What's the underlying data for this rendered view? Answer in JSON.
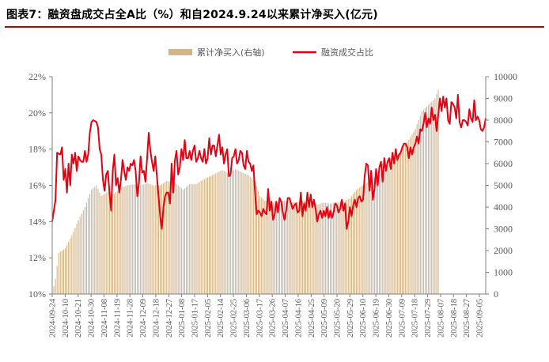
{
  "title": "图表7：融资盘成交占全A比（%）和自2024.9.24以来累计净买入(亿元)",
  "colors": {
    "bars": "#d2b58c",
    "line": "#e60012",
    "title_rule": "#c00000",
    "axis_text": "#595959"
  },
  "chart_data": {
    "type": "bar+line",
    "legend": [
      {
        "name": "累计净买入(右轴)",
        "kind": "bar"
      },
      {
        "name": "融资成交占比",
        "kind": "line"
      }
    ],
    "legend_position": "top-center",
    "grid": false,
    "left_axis": {
      "min": 10,
      "max": 22,
      "step": 2,
      "suffix": "%",
      "ticks": [
        "10%",
        "12%",
        "14%",
        "16%",
        "18%",
        "20%",
        "22%"
      ]
    },
    "right_axis": {
      "min": 0,
      "max": 10000,
      "step": 1000,
      "ticks": [
        "0",
        "1000",
        "2000",
        "3000",
        "4000",
        "5000",
        "6000",
        "7000",
        "8000",
        "9000",
        "10000"
      ]
    },
    "x_tick_labels": [
      "2024-09-24",
      "2024-10-10",
      "2024-10-21",
      "2024-10-30",
      "2024-11-08",
      "2024-11-19",
      "2024-11-28",
      "2024-12-09",
      "2024-12-18",
      "2024-12-27",
      "2025-01-08",
      "2025-01-17",
      "2025-02-05",
      "2025-02-14",
      "2025-02-25",
      "2025-03-06",
      "2025-03-17",
      "2025-03-26",
      "2025-04-07",
      "2025-04-16",
      "2025-04-25",
      "2025-05-09",
      "2025-05-20",
      "2025-05-29",
      "2025-06-10",
      "2025-06-19",
      "2025-06-30",
      "2025-07-09",
      "2025-07-18",
      "2025-07-29",
      "2025-08-07",
      "2025-08-18",
      "2025-08-27",
      "2025-09-05"
    ],
    "bar_anchors": [
      [
        0,
        0
      ],
      [
        2,
        700
      ],
      [
        4,
        1900
      ],
      [
        8,
        2100
      ],
      [
        12,
        2700
      ],
      [
        16,
        3400
      ],
      [
        20,
        4000
      ],
      [
        24,
        4800
      ],
      [
        27,
        5000
      ],
      [
        30,
        4500
      ],
      [
        34,
        4700
      ],
      [
        38,
        4600
      ],
      [
        42,
        4900
      ],
      [
        46,
        5000
      ],
      [
        50,
        5050
      ],
      [
        54,
        5000
      ],
      [
        58,
        5100
      ],
      [
        62,
        5000
      ],
      [
        66,
        5000
      ],
      [
        70,
        5200
      ],
      [
        74,
        5150
      ],
      [
        77,
        5000
      ],
      [
        80,
        4800
      ],
      [
        84,
        5050
      ],
      [
        88,
        5050
      ],
      [
        92,
        5250
      ],
      [
        96,
        5400
      ],
      [
        100,
        5550
      ],
      [
        104,
        5700
      ],
      [
        108,
        5550
      ],
      [
        112,
        5750
      ],
      [
        116,
        5600
      ],
      [
        120,
        5450
      ],
      [
        124,
        5200
      ],
      [
        127,
        4500
      ],
      [
        130,
        4300
      ],
      [
        134,
        4200
      ],
      [
        138,
        4250
      ],
      [
        142,
        4300
      ],
      [
        146,
        4200
      ],
      [
        150,
        4250
      ],
      [
        154,
        4300
      ],
      [
        158,
        4150
      ],
      [
        162,
        4100
      ],
      [
        166,
        4200
      ],
      [
        170,
        4150
      ],
      [
        174,
        4200
      ],
      [
        178,
        4250
      ],
      [
        182,
        4400
      ],
      [
        186,
        4800
      ],
      [
        190,
        5000
      ],
      [
        194,
        5200
      ],
      [
        198,
        5400
      ],
      [
        202,
        5600
      ],
      [
        206,
        6000
      ],
      [
        210,
        6300
      ],
      [
        214,
        6700
      ],
      [
        218,
        7100
      ],
      [
        222,
        7600
      ],
      [
        226,
        8400
      ],
      [
        230,
        8700
      ],
      [
        234,
        9000
      ],
      [
        236,
        9400
      ]
    ],
    "line_anchors": [
      [
        0,
        14.0
      ],
      [
        2,
        15.2
      ],
      [
        3,
        17.8
      ],
      [
        5,
        17.7
      ],
      [
        6,
        18.1
      ],
      [
        7,
        16.3
      ],
      [
        8,
        16.9
      ],
      [
        9,
        15.6
      ],
      [
        10,
        17.2
      ],
      [
        11,
        16.0
      ],
      [
        12,
        17.7
      ],
      [
        13,
        17.2
      ],
      [
        14,
        17.8
      ],
      [
        15,
        16.8
      ],
      [
        16,
        17.6
      ],
      [
        17,
        17.4
      ],
      [
        18,
        17.3
      ],
      [
        19,
        17.3
      ],
      [
        20,
        17.9
      ],
      [
        21,
        17.3
      ],
      [
        22,
        17.7
      ],
      [
        23,
        18.9
      ],
      [
        24,
        19.5
      ],
      [
        25,
        19.6
      ],
      [
        27,
        19.5
      ],
      [
        28,
        19.2
      ],
      [
        29,
        18.0
      ],
      [
        30,
        17.7
      ],
      [
        31,
        16.3
      ],
      [
        32,
        15.7
      ],
      [
        33,
        16.6
      ],
      [
        34,
        16.8
      ],
      [
        35,
        15.6
      ],
      [
        36,
        14.6
      ],
      [
        37,
        16.8
      ],
      [
        38,
        17.7
      ],
      [
        39,
        16.0
      ],
      [
        40,
        16.4
      ],
      [
        41,
        15.6
      ],
      [
        42,
        16.3
      ],
      [
        43,
        17.4
      ],
      [
        44,
        16.8
      ],
      [
        45,
        16.3
      ],
      [
        46,
        17.0
      ],
      [
        47,
        16.8
      ],
      [
        48,
        17.2
      ],
      [
        49,
        17.1
      ],
      [
        50,
        17.4
      ],
      [
        51,
        16.8
      ],
      [
        52,
        15.4
      ],
      [
        53,
        16.1
      ],
      [
        54,
        17.6
      ],
      [
        55,
        16.7
      ],
      [
        56,
        16.8
      ],
      [
        57,
        16.2
      ],
      [
        58,
        17.5
      ],
      [
        59,
        18.9
      ],
      [
        60,
        17.9
      ],
      [
        61,
        17.3
      ],
      [
        62,
        16.8
      ],
      [
        63,
        17.6
      ],
      [
        64,
        16.5
      ],
      [
        65,
        15.4
      ],
      [
        66,
        14.3
      ],
      [
        67,
        13.6
      ],
      [
        68,
        14.8
      ],
      [
        69,
        15.4
      ],
      [
        70,
        15.6
      ],
      [
        71,
        15.6
      ],
      [
        72,
        15.0
      ],
      [
        73,
        17.2
      ],
      [
        74,
        15.6
      ],
      [
        75,
        17.4
      ],
      [
        76,
        17.9
      ],
      [
        77,
        16.6
      ],
      [
        78,
        17.0
      ],
      [
        79,
        18.0
      ],
      [
        80,
        17.4
      ],
      [
        81,
        18.5
      ],
      [
        82,
        17.5
      ],
      [
        83,
        17.5
      ],
      [
        84,
        17.9
      ],
      [
        85,
        17.4
      ],
      [
        86,
        17.9
      ],
      [
        87,
        18.2
      ],
      [
        88,
        17.3
      ],
      [
        89,
        17.5
      ],
      [
        90,
        17.9
      ],
      [
        91,
        17.5
      ],
      [
        92,
        17.3
      ],
      [
        93,
        18.0
      ],
      [
        94,
        17.2
      ],
      [
        95,
        17.5
      ],
      [
        96,
        18.6
      ],
      [
        97,
        17.7
      ],
      [
        98,
        18.2
      ],
      [
        99,
        18.2
      ],
      [
        100,
        17.6
      ],
      [
        101,
        18.2
      ],
      [
        102,
        18.8
      ],
      [
        103,
        17.7
      ],
      [
        104,
        18.1
      ],
      [
        105,
        17.2
      ],
      [
        106,
        17.7
      ],
      [
        107,
        18.0
      ],
      [
        108,
        16.5
      ],
      [
        109,
        16.6
      ],
      [
        110,
        17.5
      ],
      [
        111,
        17.6
      ],
      [
        112,
        18.0
      ],
      [
        113,
        17.2
      ],
      [
        114,
        17.4
      ],
      [
        115,
        17.9
      ],
      [
        116,
        17.8
      ],
      [
        117,
        17.1
      ],
      [
        118,
        16.9
      ],
      [
        119,
        17.9
      ],
      [
        120,
        17.3
      ],
      [
        121,
        17.2
      ],
      [
        122,
        16.8
      ],
      [
        123,
        17.1
      ],
      [
        124,
        15.6
      ],
      [
        125,
        14.4
      ],
      [
        126,
        14.6
      ],
      [
        127,
        14.5
      ],
      [
        128,
        14.3
      ],
      [
        129,
        14.7
      ],
      [
        130,
        14.5
      ],
      [
        131,
        14.4
      ],
      [
        132,
        15.8
      ],
      [
        133,
        14.6
      ],
      [
        134,
        15.1
      ],
      [
        135,
        14.1
      ],
      [
        136,
        14.4
      ],
      [
        137,
        15.1
      ],
      [
        138,
        14.5
      ],
      [
        139,
        15.3
      ],
      [
        140,
        15.1
      ],
      [
        141,
        14.5
      ],
      [
        142,
        14.1
      ],
      [
        143,
        14.6
      ],
      [
        144,
        15.3
      ],
      [
        145,
        15.3
      ],
      [
        146,
        15.0
      ],
      [
        147,
        14.7
      ],
      [
        148,
        14.9
      ],
      [
        149,
        15.0
      ],
      [
        150,
        14.5
      ],
      [
        151,
        14.6
      ],
      [
        152,
        15.6
      ],
      [
        153,
        14.3
      ],
      [
        154,
        15.0
      ],
      [
        155,
        14.6
      ],
      [
        156,
        15.6
      ],
      [
        157,
        14.8
      ],
      [
        158,
        15.5
      ],
      [
        159,
        14.8
      ],
      [
        160,
        15.2
      ],
      [
        161,
        14.7
      ],
      [
        162,
        14.0
      ],
      [
        163,
        14.4
      ],
      [
        164,
        14.6
      ],
      [
        165,
        14.2
      ],
      [
        166,
        14.6
      ],
      [
        167,
        14.3
      ],
      [
        168,
        14.8
      ],
      [
        169,
        14.2
      ],
      [
        170,
        14.6
      ],
      [
        171,
        14.2
      ],
      [
        172,
        14.5
      ],
      [
        173,
        15.0
      ],
      [
        174,
        14.9
      ],
      [
        175,
        14.5
      ],
      [
        176,
        14.7
      ],
      [
        177,
        15.2
      ],
      [
        178,
        14.6
      ],
      [
        179,
        15.0
      ],
      [
        180,
        13.6
      ],
      [
        181,
        14.0
      ],
      [
        182,
        14.8
      ],
      [
        183,
        14.3
      ],
      [
        184,
        14.9
      ],
      [
        185,
        15.2
      ],
      [
        186,
        14.8
      ],
      [
        187,
        15.3
      ],
      [
        188,
        15.4
      ],
      [
        189,
        15.1
      ],
      [
        190,
        15.2
      ],
      [
        191,
        16.5
      ],
      [
        192,
        17.2
      ],
      [
        193,
        17.1
      ],
      [
        194,
        15.7
      ],
      [
        195,
        16.8
      ],
      [
        196,
        15.2
      ],
      [
        197,
        15.8
      ],
      [
        198,
        16.9
      ],
      [
        199,
        16.0
      ],
      [
        200,
        17.0
      ],
      [
        201,
        17.3
      ],
      [
        202,
        16.2
      ],
      [
        203,
        17.5
      ],
      [
        204,
        16.8
      ],
      [
        205,
        17.3
      ],
      [
        206,
        17.5
      ],
      [
        207,
        16.9
      ],
      [
        208,
        17.8
      ],
      [
        209,
        17.2
      ],
      [
        210,
        18.0
      ],
      [
        211,
        17.4
      ],
      [
        212,
        17.7
      ],
      [
        213,
        17.8
      ],
      [
        214,
        18.1
      ],
      [
        215,
        18.3
      ],
      [
        216,
        18.3
      ],
      [
        217,
        18.1
      ],
      [
        218,
        17.5
      ],
      [
        219,
        18.1
      ],
      [
        220,
        17.7
      ],
      [
        221,
        18.1
      ],
      [
        222,
        18.3
      ],
      [
        223,
        18.7
      ],
      [
        224,
        18.3
      ],
      [
        225,
        19.1
      ],
      [
        226,
        19.0
      ],
      [
        227,
        19.4
      ],
      [
        228,
        20.0
      ],
      [
        229,
        19.2
      ],
      [
        230,
        19.7
      ],
      [
        231,
        19.4
      ],
      [
        232,
        20.3
      ],
      [
        233,
        19.6
      ],
      [
        234,
        19.9
      ],
      [
        235,
        19.0
      ],
      [
        236,
        19.9
      ],
      [
        237,
        20.8
      ],
      [
        238,
        20.1
      ],
      [
        239,
        20.9
      ],
      [
        240,
        20.3
      ],
      [
        241,
        20.8
      ],
      [
        242,
        19.6
      ],
      [
        243,
        19.4
      ],
      [
        244,
        20.6
      ],
      [
        245,
        20.5
      ],
      [
        246,
        20.3
      ],
      [
        247,
        19.7
      ],
      [
        248,
        21.0
      ],
      [
        249,
        19.5
      ],
      [
        250,
        19.2
      ],
      [
        251,
        19.6
      ],
      [
        252,
        19.6
      ],
      [
        253,
        19.5
      ],
      [
        254,
        19.3
      ],
      [
        255,
        20.2
      ],
      [
        256,
        19.7
      ],
      [
        257,
        19.5
      ],
      [
        258,
        20.7
      ],
      [
        259,
        19.6
      ],
      [
        260,
        19.8
      ],
      [
        261,
        19.6
      ],
      [
        262,
        19.1
      ],
      [
        263,
        19.0
      ],
      [
        264,
        19.2
      ],
      [
        265,
        19.7
      ]
    ]
  }
}
